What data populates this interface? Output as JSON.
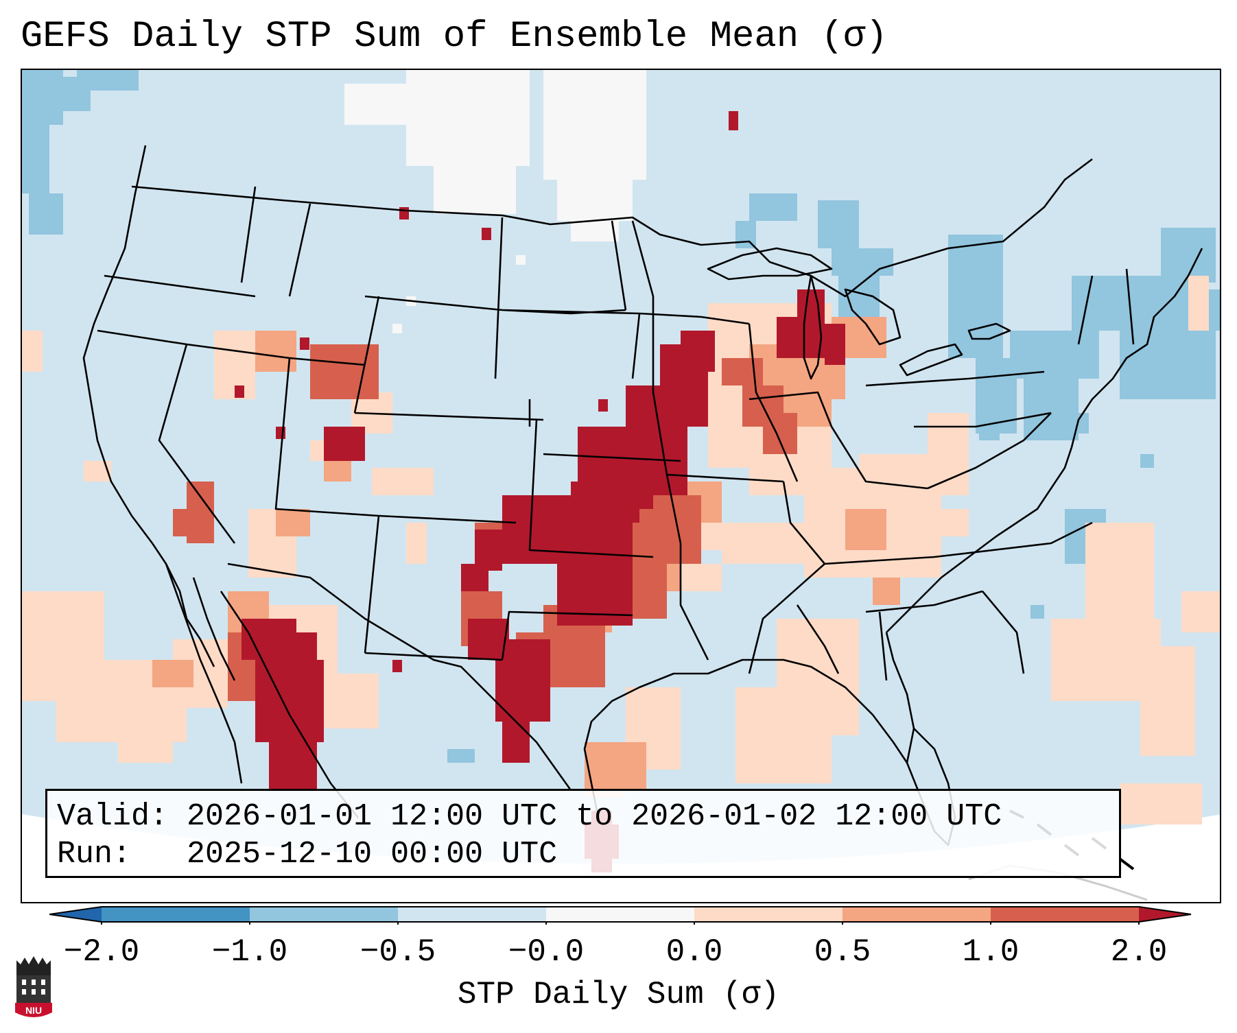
{
  "title": "GEFS Daily STP Sum of Ensemble Mean (σ)",
  "info": {
    "valid_label": "Valid:",
    "valid_value": "2026-01-01 12:00 UTC to 2026-01-02 12:00 UTC",
    "run_label": "Run:",
    "run_value": "2025-12-10 00:00 UTC"
  },
  "colorbar": {
    "label": "STP Daily Sum (σ)",
    "ticks": [
      "−2.0",
      "−1.0",
      "−0.5",
      "−0.0",
      "0.0",
      "0.5",
      "1.0",
      "2.0"
    ],
    "colors": [
      "#4393c3",
      "#92c5de",
      "#d1e5f0",
      "#f7f7f7",
      "#fddbc7",
      "#f4a582",
      "#d6604d"
    ],
    "under_color": "#2166ac",
    "over_color": "#b2182b"
  },
  "logo": {
    "text": "NIU"
  }
}
